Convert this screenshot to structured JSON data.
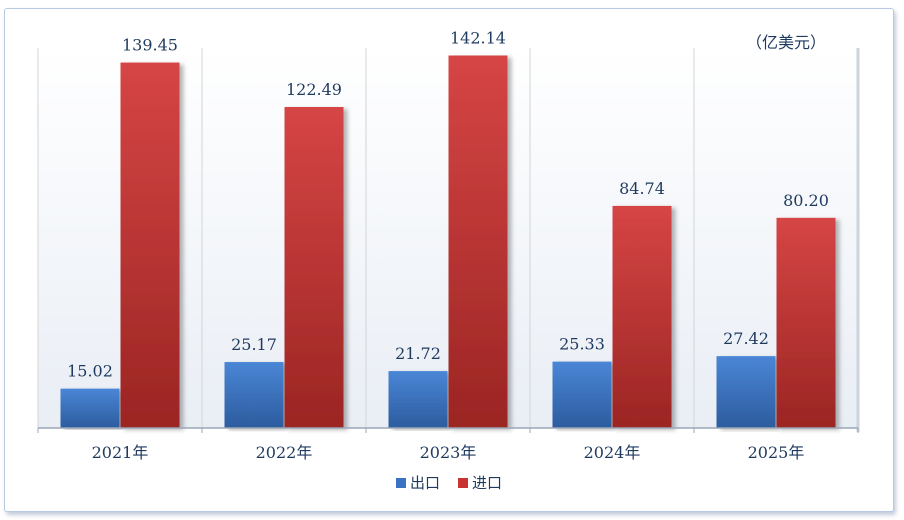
{
  "chart_data": {
    "type": "bar",
    "unit_label": "（亿美元）",
    "categories": [
      "2021年",
      "2022年",
      "2023年",
      "2024年",
      "2025年"
    ],
    "series": [
      {
        "name": "出口",
        "values": [
          15.02,
          25.17,
          21.72,
          25.33,
          27.42
        ],
        "labels": [
          "15.02",
          "25.17",
          "21.72",
          "25.33",
          "27.42"
        ],
        "color": "#3a72c4"
      },
      {
        "name": "进口",
        "values": [
          139.45,
          122.49,
          142.14,
          84.74,
          80.2
        ],
        "labels": [
          "139.45",
          "122.49",
          "142.14",
          "84.74",
          "80.20"
        ],
        "color": "#c93331"
      }
    ],
    "ylim": [
      0,
      145
    ],
    "grid": "vertical",
    "legend_position": "bottom"
  }
}
